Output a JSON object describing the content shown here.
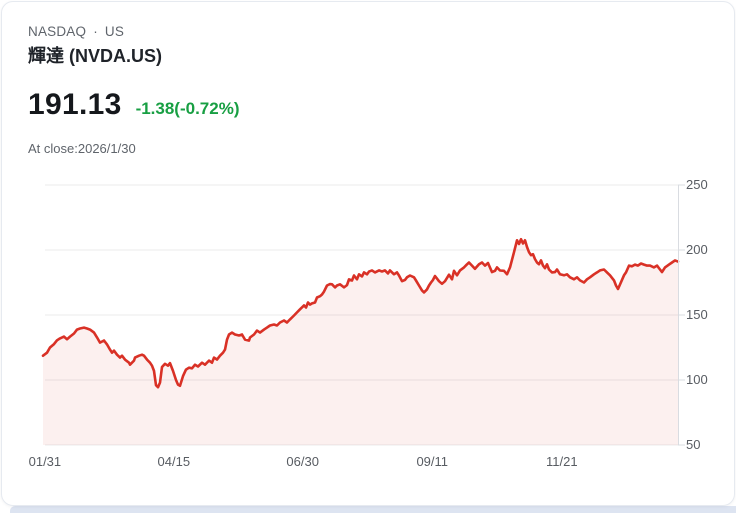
{
  "header": {
    "exchange": "NASDAQ",
    "separator": "·",
    "market": "US",
    "title": "輝達 (NVDA.US)",
    "price": "191.13",
    "change": "-1.38(-0.72%)",
    "as_of": "At close:2026/1/30"
  },
  "colors": {
    "price_text": "#15181c",
    "change_text": "#189f43",
    "muted_text": "#5f646b",
    "title_text": "#1f2329",
    "line": "#d93126",
    "area_fill": "rgba(217,49,38,0.075)",
    "grid": "#ebebeb",
    "axis": "#d9dce1",
    "tick_text": "#585c62",
    "card_border": "#e6eaf0",
    "bottom_strip": "#dde4f1"
  },
  "chart_data": {
    "type": "area",
    "symbol": "NVDA.US",
    "last_close": 191.13,
    "ylim": [
      50,
      250
    ],
    "grid": true,
    "y_ticks": [
      250,
      200,
      150,
      100,
      50
    ],
    "x_ticks": [
      {
        "label": "01/31",
        "f": 0.003
      },
      {
        "label": "04/15",
        "f": 0.206
      },
      {
        "label": "06/30",
        "f": 0.409
      },
      {
        "label": "09/11",
        "f": 0.613
      },
      {
        "label": "11/21",
        "f": 0.817
      }
    ],
    "points": [
      [
        0.0,
        118.7
      ],
      [
        0.0063,
        121.0
      ],
      [
        0.011,
        125.0
      ],
      [
        0.0173,
        127.6
      ],
      [
        0.022,
        130.5
      ],
      [
        0.0268,
        132.0
      ],
      [
        0.0331,
        133.4
      ],
      [
        0.0378,
        131.3
      ],
      [
        0.0425,
        133.4
      ],
      [
        0.0488,
        135.8
      ],
      [
        0.0535,
        138.8
      ],
      [
        0.0583,
        139.6
      ],
      [
        0.0646,
        140.3
      ],
      [
        0.0693,
        139.6
      ],
      [
        0.074,
        138.8
      ],
      [
        0.0803,
        136.5
      ],
      [
        0.085,
        132.8
      ],
      [
        0.0898,
        128.8
      ],
      [
        0.0961,
        130.4
      ],
      [
        0.1008,
        127.4
      ],
      [
        0.1055,
        123.4
      ],
      [
        0.1087,
        121.0
      ],
      [
        0.1118,
        122.6
      ],
      [
        0.1165,
        119.5
      ],
      [
        0.1213,
        117.2
      ],
      [
        0.1244,
        118.7
      ],
      [
        0.1291,
        115.7
      ],
      [
        0.1354,
        113.3
      ],
      [
        0.137,
        111.8
      ],
      [
        0.1433,
        114.9
      ],
      [
        0.1449,
        117.2
      ],
      [
        0.1512,
        118.7
      ],
      [
        0.1559,
        119.5
      ],
      [
        0.1591,
        118.7
      ],
      [
        0.1638,
        115.7
      ],
      [
        0.1685,
        113.3
      ],
      [
        0.1717,
        111.0
      ],
      [
        0.1748,
        107.0
      ],
      [
        0.178,
        96.0
      ],
      [
        0.1811,
        94.5
      ],
      [
        0.1843,
        98.0
      ],
      [
        0.1874,
        110.0
      ],
      [
        0.1921,
        112.5
      ],
      [
        0.1969,
        111.0
      ],
      [
        0.2,
        113.0
      ],
      [
        0.2047,
        107.0
      ],
      [
        0.2094,
        100.0
      ],
      [
        0.2126,
        96.5
      ],
      [
        0.2157,
        95.5
      ],
      [
        0.2205,
        103.0
      ],
      [
        0.2252,
        108.0
      ],
      [
        0.2299,
        109.5
      ],
      [
        0.2346,
        109.0
      ],
      [
        0.2394,
        111.8
      ],
      [
        0.2441,
        110.4
      ],
      [
        0.2504,
        113.3
      ],
      [
        0.2551,
        111.8
      ],
      [
        0.2614,
        114.9
      ],
      [
        0.2661,
        113.3
      ],
      [
        0.2693,
        117.2
      ],
      [
        0.274,
        115.7
      ],
      [
        0.2787,
        118.7
      ],
      [
        0.2835,
        121.0
      ],
      [
        0.2866,
        123.4
      ],
      [
        0.2898,
        131.1
      ],
      [
        0.2929,
        135.0
      ],
      [
        0.2976,
        136.5
      ],
      [
        0.3024,
        135.0
      ],
      [
        0.3087,
        134.2
      ],
      [
        0.3134,
        135.0
      ],
      [
        0.3181,
        131.1
      ],
      [
        0.3244,
        130.3
      ],
      [
        0.326,
        132.7
      ],
      [
        0.3323,
        135.0
      ],
      [
        0.337,
        138.0
      ],
      [
        0.3417,
        136.5
      ],
      [
        0.348,
        138.8
      ],
      [
        0.3528,
        140.3
      ],
      [
        0.3575,
        141.9
      ],
      [
        0.3638,
        142.7
      ],
      [
        0.3685,
        141.9
      ],
      [
        0.3732,
        144.2
      ],
      [
        0.3795,
        145.8
      ],
      [
        0.3843,
        144.2
      ],
      [
        0.389,
        146.6
      ],
      [
        0.3953,
        149.6
      ],
      [
        0.4,
        152.0
      ],
      [
        0.4047,
        154.4
      ],
      [
        0.411,
        157.4
      ],
      [
        0.4142,
        155.8
      ],
      [
        0.4173,
        159.6
      ],
      [
        0.4205,
        158.0
      ],
      [
        0.4236,
        158.9
      ],
      [
        0.4283,
        159.6
      ],
      [
        0.4315,
        163.5
      ],
      [
        0.4362,
        164.5
      ],
      [
        0.4394,
        165.8
      ],
      [
        0.4425,
        168.0
      ],
      [
        0.4472,
        172.7
      ],
      [
        0.452,
        173.8
      ],
      [
        0.4551,
        173.6
      ],
      [
        0.4598,
        171.2
      ],
      [
        0.463,
        172.7
      ],
      [
        0.4677,
        173.6
      ],
      [
        0.474,
        171.2
      ],
      [
        0.4787,
        173.0
      ],
      [
        0.4819,
        177.5
      ],
      [
        0.4866,
        176.5
      ],
      [
        0.4898,
        180.4
      ],
      [
        0.4945,
        177.5
      ],
      [
        0.4976,
        181.3
      ],
      [
        0.5024,
        179.7
      ],
      [
        0.5055,
        182.8
      ],
      [
        0.5102,
        181.3
      ],
      [
        0.5134,
        183.4
      ],
      [
        0.5181,
        184.3
      ],
      [
        0.5228,
        182.8
      ],
      [
        0.5291,
        184.3
      ],
      [
        0.5339,
        183.5
      ],
      [
        0.5386,
        184.3
      ],
      [
        0.5433,
        182.0
      ],
      [
        0.5465,
        184.3
      ],
      [
        0.5528,
        181.3
      ],
      [
        0.5575,
        182.8
      ],
      [
        0.5606,
        180.4
      ],
      [
        0.5654,
        176.0
      ],
      [
        0.5701,
        177.0
      ],
      [
        0.5732,
        179.0
      ],
      [
        0.578,
        180.4
      ],
      [
        0.5843,
        179.0
      ],
      [
        0.5874,
        176.5
      ],
      [
        0.5921,
        172.7
      ],
      [
        0.5969,
        168.9
      ],
      [
        0.6,
        167.4
      ],
      [
        0.6047,
        169.7
      ],
      [
        0.6079,
        172.7
      ],
      [
        0.611,
        175.0
      ],
      [
        0.6142,
        177.0
      ],
      [
        0.6173,
        180.0
      ],
      [
        0.6236,
        176.0
      ],
      [
        0.6283,
        174.0
      ],
      [
        0.6331,
        176.0
      ],
      [
        0.6394,
        181.0
      ],
      [
        0.6441,
        177.5
      ],
      [
        0.6472,
        184.0
      ],
      [
        0.652,
        180.5
      ],
      [
        0.6567,
        184.3
      ],
      [
        0.663,
        186.6
      ],
      [
        0.6677,
        189.0
      ],
      [
        0.6709,
        190.4
      ],
      [
        0.6756,
        188.0
      ],
      [
        0.6803,
        185.5
      ],
      [
        0.6866,
        189.0
      ],
      [
        0.6913,
        190.4
      ],
      [
        0.6961,
        188.0
      ],
      [
        0.7008,
        190.0
      ],
      [
        0.7071,
        183.0
      ],
      [
        0.7118,
        184.0
      ],
      [
        0.715,
        186.6
      ],
      [
        0.7197,
        184.2
      ],
      [
        0.726,
        184.0
      ],
      [
        0.7307,
        181.3
      ],
      [
        0.7354,
        186.6
      ],
      [
        0.7417,
        198.3
      ],
      [
        0.7465,
        207.5
      ],
      [
        0.7496,
        204.6
      ],
      [
        0.7528,
        208.3
      ],
      [
        0.7559,
        205.0
      ],
      [
        0.7591,
        207.5
      ],
      [
        0.7622,
        202.3
      ],
      [
        0.7654,
        198.3
      ],
      [
        0.7685,
        196.0
      ],
      [
        0.7717,
        196.8
      ],
      [
        0.7748,
        193.0
      ],
      [
        0.778,
        190.4
      ],
      [
        0.7811,
        189.0
      ],
      [
        0.7843,
        192.0
      ],
      [
        0.7874,
        188.0
      ],
      [
        0.7906,
        186.0
      ],
      [
        0.7937,
        189.0
      ],
      [
        0.7969,
        185.0
      ],
      [
        0.8016,
        182.8
      ],
      [
        0.8063,
        183.0
      ],
      [
        0.8094,
        185.0
      ],
      [
        0.8142,
        181.3
      ],
      [
        0.8205,
        180.5
      ],
      [
        0.8252,
        181.3
      ],
      [
        0.8299,
        179.0
      ],
      [
        0.8362,
        177.5
      ],
      [
        0.8409,
        179.0
      ],
      [
        0.8457,
        176.6
      ],
      [
        0.852,
        175.0
      ],
      [
        0.8567,
        177.5
      ],
      [
        0.8614,
        179.0
      ],
      [
        0.8677,
        181.3
      ],
      [
        0.8724,
        182.8
      ],
      [
        0.8772,
        184.3
      ],
      [
        0.8835,
        185.0
      ],
      [
        0.8882,
        182.8
      ],
      [
        0.8929,
        180.5
      ],
      [
        0.8992,
        176.6
      ],
      [
        0.9024,
        172.7
      ],
      [
        0.9055,
        170.0
      ],
      [
        0.9087,
        173.5
      ],
      [
        0.915,
        180.5
      ],
      [
        0.9181,
        182.8
      ],
      [
        0.9228,
        188.0
      ],
      [
        0.9276,
        187.5
      ],
      [
        0.9323,
        188.8
      ],
      [
        0.937,
        188.0
      ],
      [
        0.9417,
        189.6
      ],
      [
        0.9465,
        188.8
      ],
      [
        0.9512,
        188.0
      ],
      [
        0.9559,
        188.0
      ],
      [
        0.9622,
        186.6
      ],
      [
        0.9669,
        188.0
      ],
      [
        0.9717,
        185.0
      ],
      [
        0.9748,
        183.0
      ],
      [
        0.9795,
        186.6
      ],
      [
        0.9858,
        188.8
      ],
      [
        0.9906,
        190.4
      ],
      [
        0.9953,
        192.0
      ],
      [
        1.0,
        191.1
      ]
    ]
  }
}
